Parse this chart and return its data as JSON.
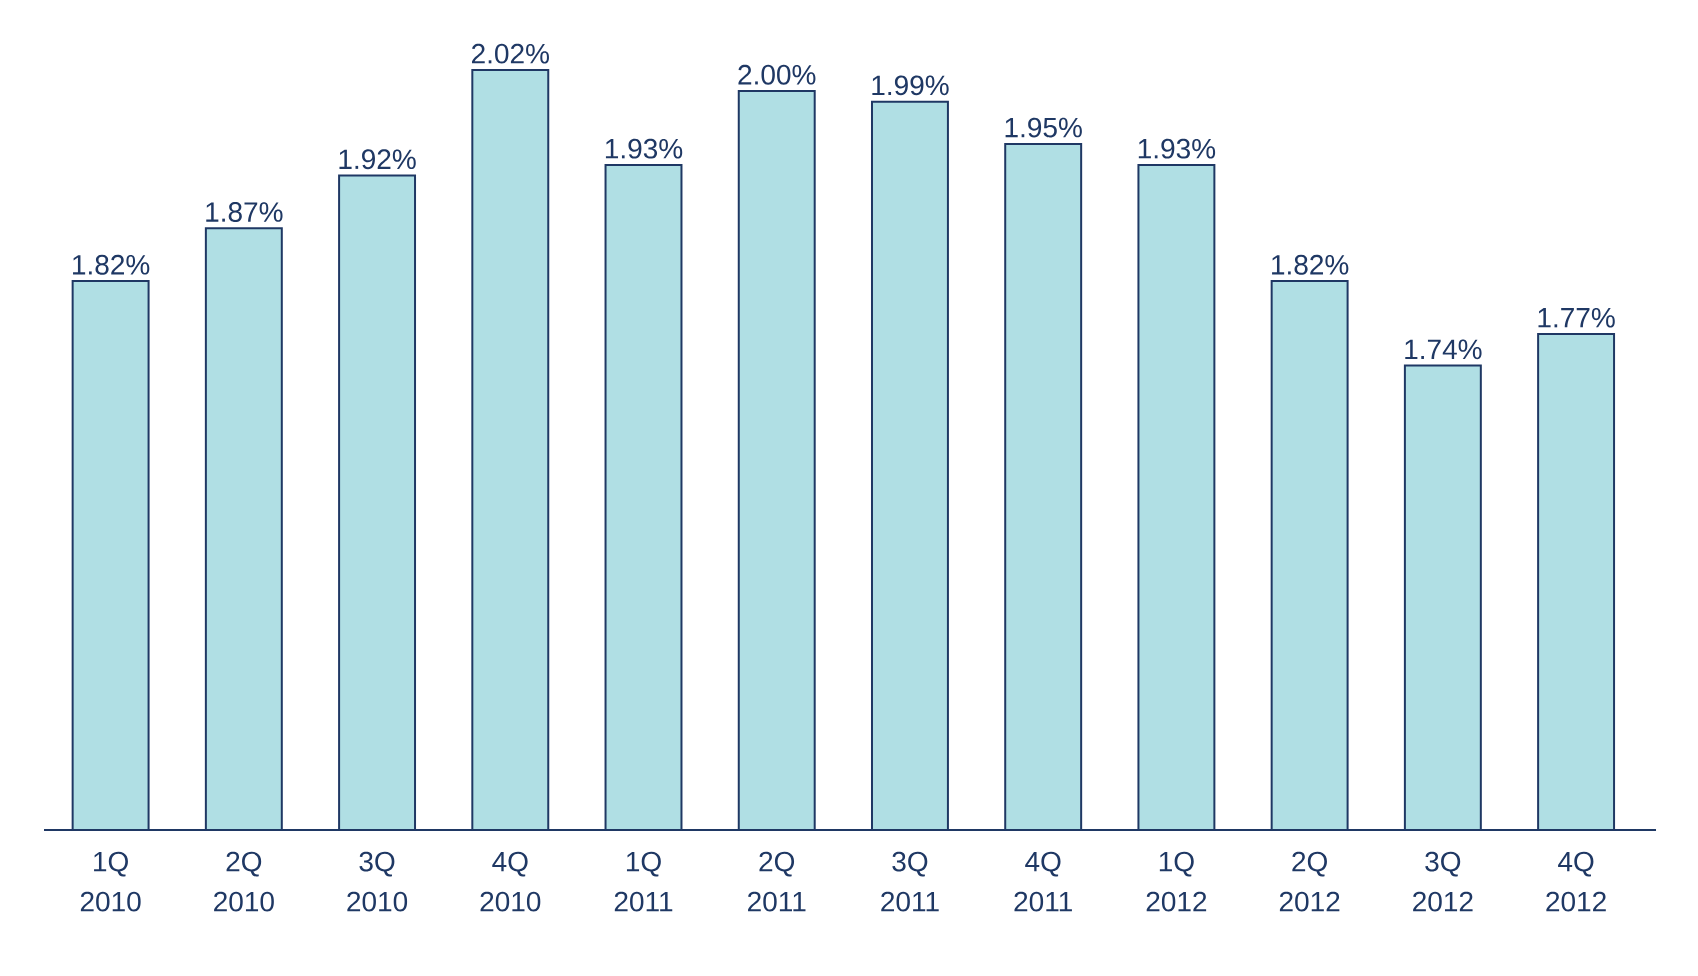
{
  "chart_data": {
    "type": "bar",
    "categories": [
      "1Q 2010",
      "2Q 2010",
      "3Q 2010",
      "4Q 2010",
      "1Q 2011",
      "2Q 2011",
      "3Q 2011",
      "4Q 2011",
      "1Q 2012",
      "2Q 2012",
      "3Q 2012",
      "4Q 2012"
    ],
    "values": [
      1.82,
      1.87,
      1.92,
      2.02,
      1.93,
      2.0,
      1.99,
      1.95,
      1.93,
      1.82,
      1.74,
      1.77
    ],
    "value_labels": [
      "1.82%",
      "1.87%",
      "1.92%",
      "2.02%",
      "1.93%",
      "2.00%",
      "1.99%",
      "1.95%",
      "1.93%",
      "1.82%",
      "1.74%",
      "1.77%"
    ],
    "color": "#b0dfe4",
    "ylim": [
      1.3,
      2.02
    ],
    "tick_labels": "x"
  }
}
